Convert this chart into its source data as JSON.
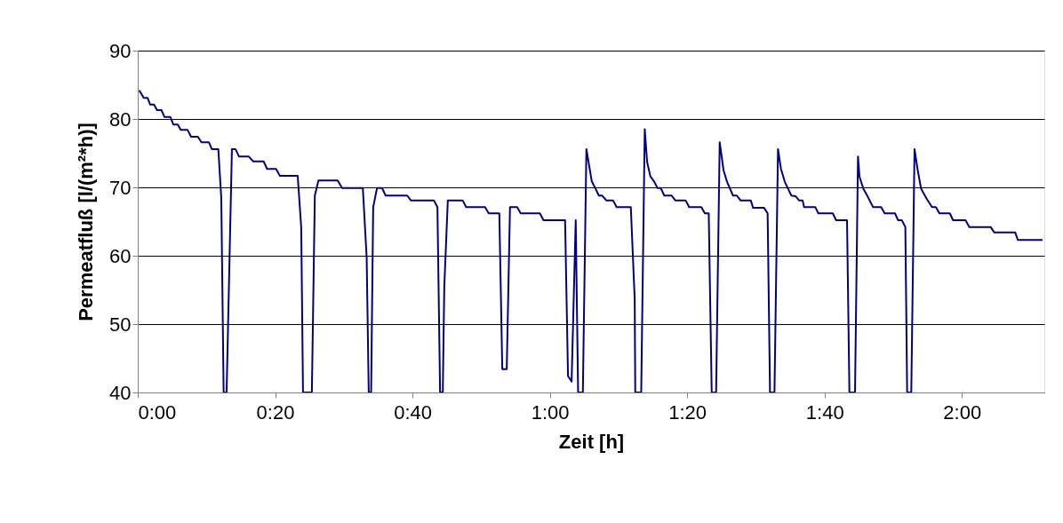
{
  "chart_data": {
    "type": "line",
    "xlabel": "Zeit [h]",
    "ylabel": "Permeatfluß [l/(m²*h)]",
    "xlim": [
      0,
      2.2
    ],
    "ylim": [
      40,
      90
    ],
    "xticks": [
      {
        "value": 0,
        "label": "0:00"
      },
      {
        "value": 0.3333,
        "label": "0:20"
      },
      {
        "value": 0.6667,
        "label": "0:40"
      },
      {
        "value": 1,
        "label": "1:00"
      },
      {
        "value": 1.3333,
        "label": "1:20"
      },
      {
        "value": 1.6667,
        "label": "1:40"
      },
      {
        "value": 2,
        "label": "2:00"
      }
    ],
    "yticks": [
      40,
      50,
      60,
      70,
      80,
      90
    ],
    "grid": "y",
    "marker": "none",
    "line_style": "solid",
    "series": [
      {
        "color": "#000080",
        "x": [
          0.0036,
          0.0144,
          0.0237,
          0.0302,
          0.0395,
          0.0467,
          0.0575,
          0.0647,
          0.079,
          0.0862,
          0.097,
          0.1042,
          0.1207,
          0.1294,
          0.1459,
          0.1545,
          0.1725,
          0.1797,
          0.1955,
          0.2027,
          0.2084,
          0.2156,
          0.2285,
          0.2371,
          0.2458,
          0.2695,
          0.2803,
          0.3054,
          0.314,
          0.3356,
          0.3449,
          0.3881,
          0.3967,
          0.401,
          0.4225,
          0.4297,
          0.4384,
          0.4851,
          0.4958,
          0.5462,
          0.5555,
          0.5605,
          0.5663,
          0.5713,
          0.5806,
          0.5929,
          0.6015,
          0.654,
          0.6626,
          0.7186,
          0.7272,
          0.7337,
          0.7402,
          0.7438,
          0.7524,
          0.7883,
          0.797,
          0.8429,
          0.8516,
          0.8774,
          0.8846,
          0.8954,
          0.9033,
          0.9206,
          0.9292,
          0.9759,
          0.9845,
          1.037,
          1.0441,
          1.0528,
          1.0628,
          1.0686,
          1.0801,
          1.0887,
          1.1017,
          1.1117,
          1.1189,
          1.1268,
          1.1369,
          1.1534,
          1.162,
          1.1965,
          1.2059,
          1.2073,
          1.2217,
          1.2303,
          1.2361,
          1.244,
          1.2526,
          1.2612,
          1.2691,
          1.2777,
          1.2957,
          1.3043,
          1.3295,
          1.3381,
          1.3676,
          1.3762,
          1.3856,
          1.3928,
          1.4035,
          1.4122,
          1.4215,
          1.4301,
          1.4445,
          1.4539,
          1.4625,
          1.4875,
          1.4933,
          1.5199,
          1.5285,
          1.5343,
          1.5451,
          1.5537,
          1.5609,
          1.5702,
          1.5861,
          1.5968,
          1.6047,
          1.6134,
          1.617,
          1.6443,
          1.6515,
          1.6867,
          1.6946,
          1.7212,
          1.727,
          1.7406,
          1.7478,
          1.7514,
          1.7607,
          1.7701,
          1.7845,
          1.8039,
          1.8125,
          1.8377,
          1.8448,
          1.8541,
          1.8627,
          1.8671,
          1.8771,
          1.885,
          1.8922,
          1.9009,
          1.9138,
          1.9274,
          1.9368,
          1.9454,
          1.9706,
          1.9785,
          2.0087,
          2.018,
          2.0698,
          2.0784,
          2.1294,
          2.1359,
          2.1955
        ],
        "values": [
          84.2,
          83.1,
          83.1,
          82.1,
          82.1,
          81.3,
          81.3,
          80.3,
          80.3,
          79.2,
          79.2,
          78.4,
          78.4,
          77.4,
          77.4,
          76.6,
          76.6,
          75.6,
          75.6,
          68.4,
          40,
          40,
          75.6,
          75.6,
          74.5,
          74.5,
          73.8,
          73.8,
          72.7,
          72.7,
          71.7,
          71.7,
          64.1,
          40,
          40,
          68.8,
          71.0,
          71.0,
          69.9,
          69.9,
          59.7,
          40,
          40,
          67.1,
          69.9,
          69.9,
          68.8,
          68.8,
          68.1,
          68.1,
          67.1,
          40,
          40,
          55.4,
          68.1,
          68.1,
          67.1,
          67.1,
          66.2,
          66.2,
          43.4,
          43.4,
          67.1,
          67.1,
          66.2,
          66.2,
          65.2,
          65.2,
          42.4,
          41.6,
          65.2,
          40,
          40,
          75.6,
          70.9,
          69.7,
          68.8,
          68.8,
          68.1,
          68.1,
          67.1,
          67.1,
          53.7,
          40,
          40,
          78.5,
          73.7,
          71.6,
          70.9,
          69.9,
          69.9,
          68.8,
          68.8,
          68.1,
          68.1,
          67.1,
          67.1,
          66.2,
          66.2,
          40,
          40,
          76.6,
          72.5,
          70.8,
          68.8,
          68.8,
          68.1,
          68.1,
          67.0,
          67.0,
          66.2,
          40,
          40,
          75.6,
          72.7,
          70.8,
          68.8,
          68.7,
          68.1,
          68.1,
          67.1,
          67.1,
          66.2,
          66.2,
          65.2,
          65.2,
          40,
          40,
          74.5,
          71.6,
          69.8,
          68.8,
          67.1,
          67.1,
          66.2,
          66.2,
          65.2,
          65.2,
          64.2,
          40,
          40,
          75.6,
          72.7,
          69.8,
          68.4,
          67.1,
          67.1,
          66.2,
          66.2,
          65.2,
          65.2,
          64.2,
          64.2,
          63.4,
          63.4,
          62.3,
          62.3
        ]
      }
    ]
  }
}
